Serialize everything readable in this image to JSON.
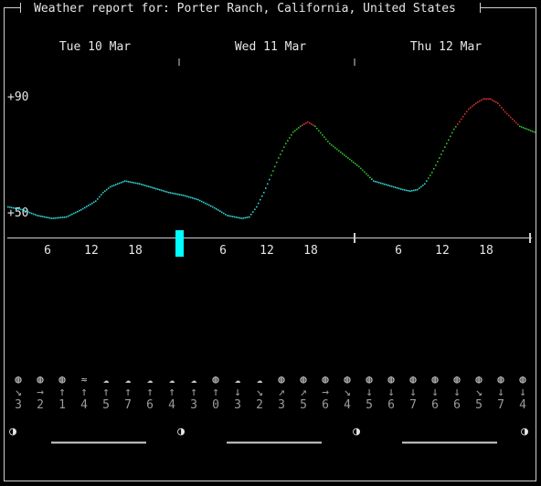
{
  "title": "Weather report for: Porter Ranch, California, United States",
  "days": [
    "Tue 10 Mar",
    "Wed 11 Mar",
    "Thu 12 Mar"
  ],
  "y_labels": [
    "+90",
    "+50"
  ],
  "hour_ticks": [
    "6",
    "12",
    "18",
    "6",
    "12",
    "18",
    "6",
    "12",
    "18"
  ],
  "colors": {
    "bg": "#000000",
    "text": "#e6e6e6",
    "cyan": "#2fd3d3",
    "green": "#2fbf2f",
    "red": "#d33030",
    "dim": "#9a9a9a",
    "now_marker": "#00ffff"
  },
  "chart_data": {
    "type": "line",
    "title": "",
    "xlabel": "",
    "ylabel": "",
    "ylim": [
      46,
      96
    ],
    "x_unit": "hour since Tue 10 Mar 00:00",
    "xlim": [
      0,
      72
    ],
    "color_thresholds": {
      "cyan_below": 62,
      "red_above": 80
    },
    "series": [
      {
        "values": [
          [
            0,
            52
          ],
          [
            2,
            51
          ],
          [
            4,
            49
          ],
          [
            6,
            48
          ],
          [
            8,
            48.5
          ],
          [
            10,
            51
          ],
          [
            12,
            54
          ],
          [
            13,
            57
          ],
          [
            14,
            59
          ],
          [
            16,
            61
          ],
          [
            18,
            60
          ],
          [
            20,
            58.5
          ],
          [
            22,
            57
          ],
          [
            24,
            56
          ],
          [
            26,
            54.5
          ],
          [
            28,
            52
          ],
          [
            30,
            49
          ],
          [
            32,
            48
          ],
          [
            33,
            48.5
          ],
          [
            34,
            52
          ],
          [
            35,
            57
          ],
          [
            36,
            63
          ],
          [
            37,
            69
          ],
          [
            38,
            74
          ],
          [
            39,
            78
          ],
          [
            40,
            80
          ],
          [
            41,
            81.5
          ],
          [
            42,
            80
          ],
          [
            43,
            77
          ],
          [
            44,
            74
          ],
          [
            46,
            70
          ],
          [
            48,
            66
          ],
          [
            50,
            61
          ],
          [
            52,
            59.5
          ],
          [
            54,
            58
          ],
          [
            55,
            57.5
          ],
          [
            56,
            58
          ],
          [
            57,
            60
          ],
          [
            58,
            64
          ],
          [
            59,
            69
          ],
          [
            60,
            74
          ],
          [
            61,
            79
          ],
          [
            62,
            82.5
          ],
          [
            63,
            86
          ],
          [
            64,
            88
          ],
          [
            65,
            89.5
          ],
          [
            66,
            89.5
          ],
          [
            67,
            88
          ],
          [
            68,
            85
          ],
          [
            70,
            80
          ],
          [
            72,
            78
          ]
        ]
      }
    ]
  },
  "forecast": {
    "icons": [
      "moon",
      "moon",
      "moon",
      "haze",
      "partly-cloudy",
      "partly-cloudy",
      "partly-cloudy",
      "partly-cloudy",
      "partly-cloudy",
      "moon",
      "partly-cloudy",
      "partly-cloudy",
      "moon",
      "moon",
      "moon",
      "moon",
      "moon",
      "moon",
      "moon",
      "moon",
      "moon",
      "moon",
      "moon",
      "moon"
    ],
    "wind_arrows": [
      "↘",
      "→",
      "↑",
      "↑",
      "↑",
      "↑",
      "↑",
      "↑",
      "↑",
      "↑",
      "↓",
      "↘",
      "↗",
      "↗",
      "→",
      "↘",
      "↓",
      "↓",
      "↓",
      "↓",
      "↓",
      "↘",
      "↓",
      "↓"
    ],
    "wind_speeds": [
      "3",
      "2",
      "1",
      "4",
      "5",
      "7",
      "6",
      "4",
      "3",
      "0",
      "3",
      "2",
      "3",
      "5",
      "6",
      "4",
      "5",
      "6",
      "7",
      "6",
      "6",
      "5",
      "7",
      "4"
    ]
  },
  "moon_phase_glyph": "◑"
}
